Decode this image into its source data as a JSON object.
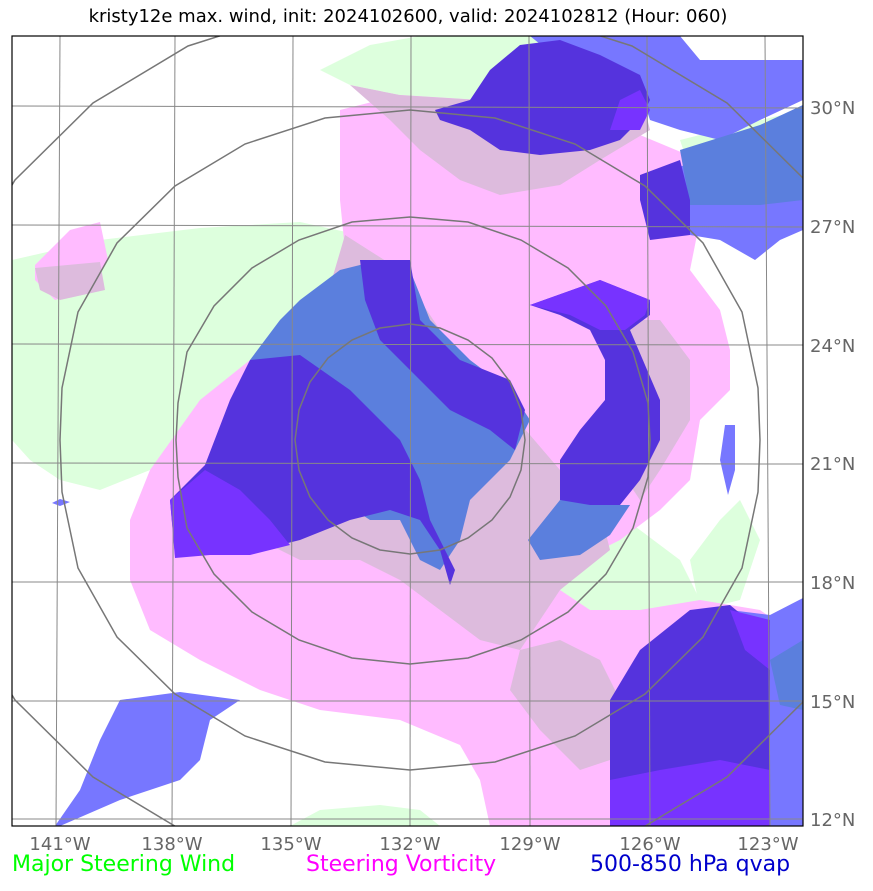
{
  "title": "kristy12e max. wind, init: 2024102600, valid: 2024102812 (Hour: 060)",
  "legend": {
    "wind": "Major Steering Wind",
    "vorticity": "Steering Vorticity",
    "qvap": "500-850 hPa qvap"
  },
  "axes": {
    "lon_labels": [
      "141°W",
      "138°W",
      "135°W",
      "132°W",
      "129°W",
      "126°W",
      "123°W"
    ],
    "lat_labels": [
      "30°N",
      "27°N",
      "24°N",
      "21°N",
      "18°N",
      "15°N",
      "12°N"
    ]
  },
  "colors": {
    "wind": "#ddffdd",
    "vorticity": "#ffbbff",
    "overlap": "#ddbbdd",
    "qvap_light": "#7777ff",
    "qvap_mid": "#5b7fdd",
    "qvap_dark": "#5533dd",
    "qvap_violet": "#7733ff",
    "grid": "#888888",
    "rings": "#777777"
  }
}
